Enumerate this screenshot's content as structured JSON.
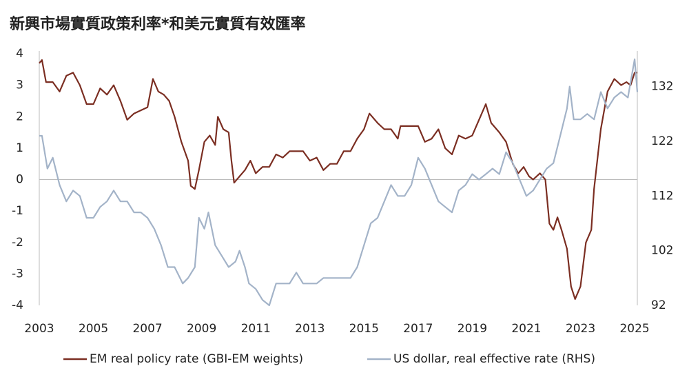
{
  "chart_data": {
    "type": "line",
    "title": "新興市場實質政策利率*和美元實質有效匯率",
    "xlim": [
      2003,
      2025.1
    ],
    "xticks": [
      2003,
      2005,
      2007,
      2009,
      2011,
      2013,
      2015,
      2017,
      2019,
      2021,
      2023,
      2025
    ],
    "ylim": [
      -4,
      4
    ],
    "yticks": [
      -4,
      -3,
      -2,
      -1,
      0,
      1,
      2,
      3,
      4
    ],
    "y2lim": [
      92,
      138
    ],
    "y2ticks": [
      92,
      102,
      112,
      122,
      132
    ],
    "legend": "bottom",
    "series": [
      {
        "name": "EM real policy rate (GBI-EM weights)",
        "color": "#7b2e22",
        "x": [
          2003.0,
          2003.1,
          2003.25,
          2003.5,
          2003.75,
          2004.0,
          2004.25,
          2004.5,
          2004.75,
          2005.0,
          2005.25,
          2005.5,
          2005.75,
          2006.0,
          2006.25,
          2006.5,
          2006.75,
          2007.0,
          2007.2,
          2007.4,
          2007.6,
          2007.8,
          2008.0,
          2008.25,
          2008.5,
          2008.6,
          2008.75,
          2008.9,
          2009.1,
          2009.3,
          2009.5,
          2009.6,
          2009.8,
          2010.0,
          2010.1,
          2010.2,
          2010.4,
          2010.6,
          2010.8,
          2011.0,
          2011.25,
          2011.5,
          2011.75,
          2012.0,
          2012.25,
          2012.5,
          2012.75,
          2013.0,
          2013.25,
          2013.5,
          2013.75,
          2014.0,
          2014.25,
          2014.5,
          2014.75,
          2015.0,
          2015.2,
          2015.5,
          2015.75,
          2016.0,
          2016.25,
          2016.35,
          2016.75,
          2017.0,
          2017.25,
          2017.5,
          2017.75,
          2018.0,
          2018.25,
          2018.5,
          2018.75,
          2019.0,
          2019.3,
          2019.5,
          2019.7,
          2020.0,
          2020.25,
          2020.5,
          2020.7,
          2020.9,
          2021.1,
          2021.25,
          2021.5,
          2021.7,
          2021.85,
          2022.0,
          2022.15,
          2022.3,
          2022.5,
          2022.65,
          2022.8,
          2023.0,
          2023.2,
          2023.4,
          2023.5,
          2023.75,
          2024.0,
          2024.25,
          2024.5,
          2024.7,
          2024.85,
          2025.0,
          2025.1
        ],
        "values": [
          3.7,
          3.8,
          3.1,
          3.1,
          2.8,
          3.3,
          3.4,
          3.0,
          2.4,
          2.4,
          2.9,
          2.7,
          3.0,
          2.5,
          1.9,
          2.1,
          2.2,
          2.3,
          3.2,
          2.8,
          2.7,
          2.5,
          2.0,
          1.2,
          0.6,
          -0.2,
          -0.3,
          0.3,
          1.2,
          1.4,
          1.1,
          2.0,
          1.6,
          1.5,
          0.6,
          -0.1,
          0.1,
          0.3,
          0.6,
          0.2,
          0.4,
          0.4,
          0.8,
          0.7,
          0.9,
          0.9,
          0.9,
          0.6,
          0.7,
          0.3,
          0.5,
          0.5,
          0.9,
          0.9,
          1.3,
          1.6,
          2.1,
          1.8,
          1.6,
          1.6,
          1.3,
          1.7,
          1.7,
          1.7,
          1.2,
          1.3,
          1.6,
          1.0,
          0.8,
          1.4,
          1.3,
          1.4,
          2.0,
          2.4,
          1.8,
          1.5,
          1.2,
          0.5,
          0.2,
          0.4,
          0.1,
          0.0,
          0.2,
          0.0,
          -1.4,
          -1.6,
          -1.2,
          -1.6,
          -2.2,
          -3.4,
          -3.8,
          -3.4,
          -2.0,
          -1.6,
          -0.3,
          1.6,
          2.8,
          3.2,
          3.0,
          3.1,
          3.0,
          3.4,
          3.4
        ]
      },
      {
        "name": "US dollar, real effective rate (RHS)",
        "color": "#a3b3c8",
        "axis": "y2",
        "x": [
          2003.0,
          2003.1,
          2003.3,
          2003.5,
          2003.75,
          2004.0,
          2004.25,
          2004.5,
          2004.75,
          2005.0,
          2005.25,
          2005.5,
          2005.75,
          2006.0,
          2006.25,
          2006.5,
          2006.75,
          2007.0,
          2007.25,
          2007.5,
          2007.75,
          2008.0,
          2008.3,
          2008.5,
          2008.75,
          2008.9,
          2009.1,
          2009.25,
          2009.5,
          2009.75,
          2010.0,
          2010.25,
          2010.4,
          2010.6,
          2010.75,
          2011.0,
          2011.25,
          2011.5,
          2011.75,
          2012.0,
          2012.25,
          2012.5,
          2012.75,
          2013.0,
          2013.25,
          2013.5,
          2013.75,
          2014.0,
          2014.5,
          2014.75,
          2015.0,
          2015.25,
          2015.5,
          2015.75,
          2016.0,
          2016.25,
          2016.5,
          2016.75,
          2017.0,
          2017.25,
          2017.5,
          2017.75,
          2018.0,
          2018.25,
          2018.5,
          2018.75,
          2019.0,
          2019.25,
          2019.5,
          2019.75,
          2020.0,
          2020.25,
          2020.5,
          2020.75,
          2021.0,
          2021.25,
          2021.5,
          2021.75,
          2022.0,
          2022.25,
          2022.5,
          2022.6,
          2022.75,
          2023.0,
          2023.25,
          2023.5,
          2023.75,
          2024.0,
          2024.25,
          2024.5,
          2024.75,
          2025.0,
          2025.1
        ],
        "values": [
          123,
          123,
          117,
          119,
          114,
          111,
          113,
          112,
          108,
          108,
          110,
          111,
          113,
          111,
          111,
          109,
          109,
          108,
          106,
          103,
          99,
          99,
          96,
          97,
          99,
          108,
          106,
          109,
          103,
          101,
          99,
          100,
          102,
          99,
          96,
          95,
          93,
          92,
          96,
          96,
          96,
          98,
          96,
          96,
          96,
          97,
          97,
          97,
          97,
          99,
          103,
          107,
          108,
          111,
          114,
          112,
          112,
          114,
          119,
          117,
          114,
          111,
          110,
          109,
          113,
          114,
          116,
          115,
          116,
          117,
          116,
          120,
          118,
          115,
          112,
          113,
          115,
          117,
          118,
          123,
          128,
          132,
          126,
          126,
          127,
          126,
          131,
          128,
          130,
          131,
          130,
          137,
          131
        ]
      }
    ]
  }
}
